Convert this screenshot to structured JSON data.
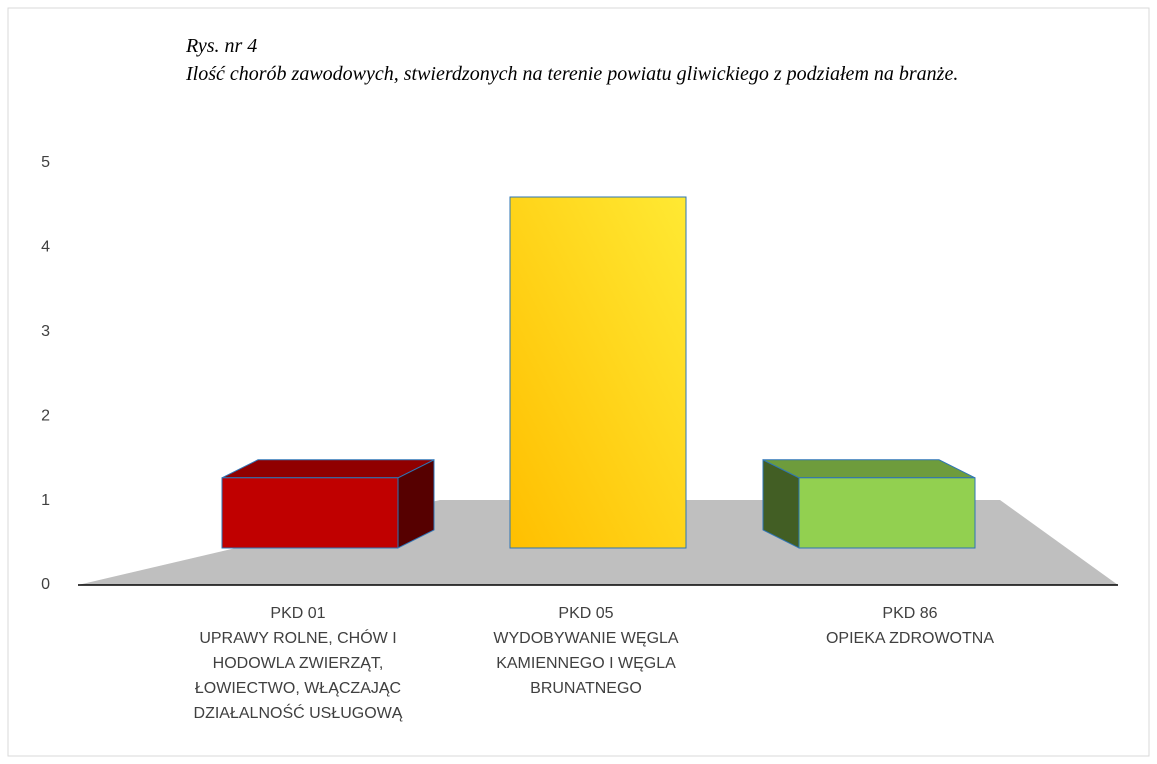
{
  "chart_data": {
    "type": "bar3d",
    "title": "Rys. nr 4",
    "subtitle": "Ilość chorób zawodowych, stwierdzonych na terenie powiatu gliwickiego z podziałem na branże.",
    "categories": [
      [
        "PKD 01",
        "UPRAWY ROLNE, CHÓW I",
        "HODOWLA ZWIERZĄT,",
        "ŁOWIECTWO, WŁĄCZAJĄC",
        "DZIAŁALNOŚĆ USŁUGOWĄ"
      ],
      [
        "PKD 05",
        "WYDOBYWANIE WĘGLA",
        "KAMIENNEGO I WĘGLA",
        "BRUNATNEGO"
      ],
      [
        "PKD 86",
        "OPIEKA ZDROWOTNA"
      ]
    ],
    "values": [
      1,
      5,
      1
    ],
    "colors": [
      "#c00000",
      "#ffc000",
      "#92d050"
    ],
    "ylim": [
      0,
      5
    ],
    "yticks": [
      0,
      1,
      2,
      3,
      4,
      5
    ],
    "grid": false
  }
}
